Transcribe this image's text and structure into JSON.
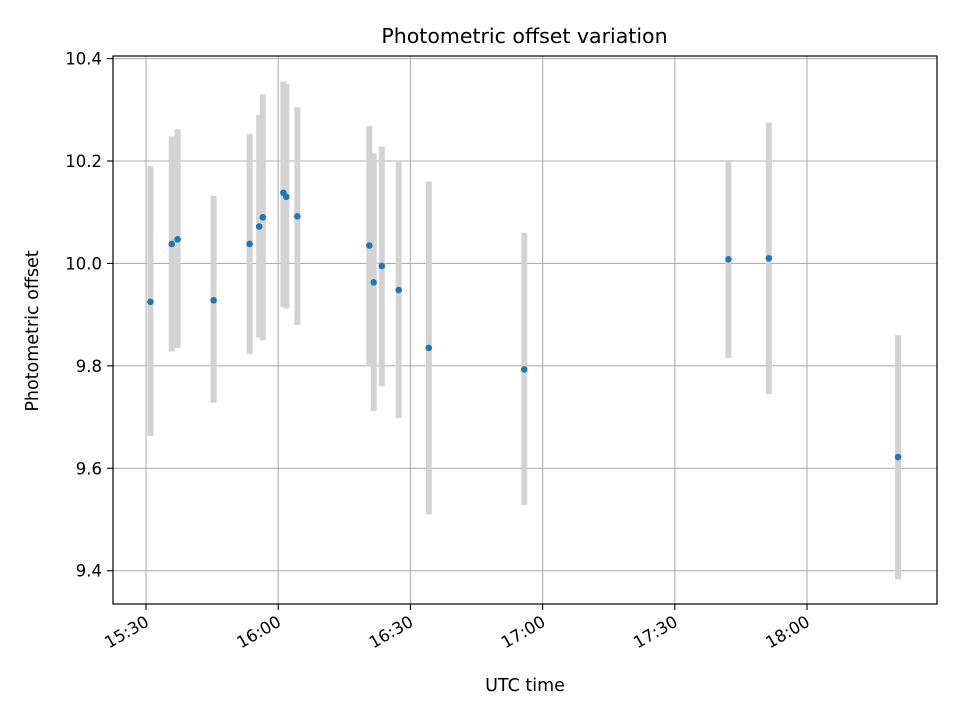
{
  "chart_data": {
    "type": "scatter",
    "title": "Photometric offset variation",
    "xlabel": "UTC time",
    "ylabel": "Photometric offset",
    "xlim": [
      "15:22:30",
      "18:29:30"
    ],
    "ylim": [
      9.335,
      10.405
    ],
    "x_ticks": [
      "15:30",
      "16:00",
      "16:30",
      "17:00",
      "17:30",
      "18:00"
    ],
    "y_ticks": [
      9.4,
      9.6,
      9.8,
      10.0,
      10.2,
      10.4
    ],
    "y_tick_labels": [
      "9.4",
      "9.6",
      "9.8",
      "10.0",
      "10.2",
      "10.4"
    ],
    "grid": true,
    "marker_color": "#1f77b4",
    "errorbar_color": "#d3d3d3",
    "points": [
      {
        "t": "15:31:00",
        "y": 9.925,
        "lo": 9.663,
        "hi": 10.19
      },
      {
        "t": "15:35:50",
        "y": 10.038,
        "lo": 9.828,
        "hi": 10.248
      },
      {
        "t": "15:37:10",
        "y": 10.047,
        "lo": 9.835,
        "hi": 10.262
      },
      {
        "t": "15:45:20",
        "y": 9.928,
        "lo": 9.728,
        "hi": 10.132
      },
      {
        "t": "15:53:30",
        "y": 10.038,
        "lo": 9.823,
        "hi": 10.253
      },
      {
        "t": "15:55:40",
        "y": 10.072,
        "lo": 9.855,
        "hi": 10.29
      },
      {
        "t": "15:56:30",
        "y": 10.09,
        "lo": 9.85,
        "hi": 10.33
      },
      {
        "t": "16:01:10",
        "y": 10.138,
        "lo": 9.915,
        "hi": 10.355
      },
      {
        "t": "16:01:50",
        "y": 10.13,
        "lo": 9.912,
        "hi": 10.35
      },
      {
        "t": "16:04:20",
        "y": 10.092,
        "lo": 9.88,
        "hi": 10.305
      },
      {
        "t": "16:20:40",
        "y": 10.035,
        "lo": 9.8,
        "hi": 10.268
      },
      {
        "t": "16:21:40",
        "y": 9.963,
        "lo": 9.712,
        "hi": 10.215
      },
      {
        "t": "16:23:30",
        "y": 9.995,
        "lo": 9.76,
        "hi": 10.228
      },
      {
        "t": "16:27:20",
        "y": 9.948,
        "lo": 9.698,
        "hi": 10.2
      },
      {
        "t": "16:34:10",
        "y": 9.835,
        "lo": 9.51,
        "hi": 10.16
      },
      {
        "t": "16:55:50",
        "y": 9.793,
        "lo": 9.528,
        "hi": 10.06
      },
      {
        "t": "17:42:10",
        "y": 10.008,
        "lo": 9.815,
        "hi": 10.202
      },
      {
        "t": "17:51:20",
        "y": 10.01,
        "lo": 9.745,
        "hi": 10.275
      },
      {
        "t": "18:20:40",
        "y": 9.622,
        "lo": 9.383,
        "hi": 9.86
      }
    ]
  }
}
